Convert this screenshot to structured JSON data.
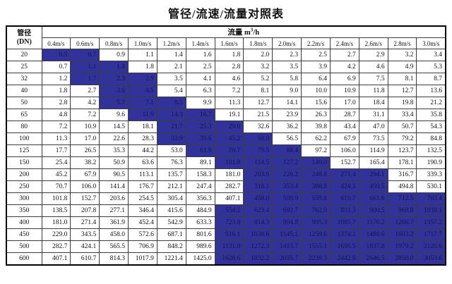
{
  "title": "管径/流速/流量对照表",
  "colors": {
    "highlight_bg": "#32329b",
    "highlight_text": "#14144a",
    "border": "#000000"
  },
  "table": {
    "corner": {
      "line1": "管径",
      "line2": "(DN)"
    },
    "flow_header": {
      "prefix": "流量 m",
      "sup": "3",
      "suffix": "/h"
    },
    "velocities": [
      "0.4m/s",
      "0.6m/s",
      "0.8m/s",
      "1.0m/s",
      "1.2m/s",
      "1.4m/s",
      "1.6m/s",
      "1.8m/s",
      "2.0m/s",
      "2.2m/s",
      "2.4m/s",
      "2.6m/s",
      "2.8m/s",
      "3.0m/s"
    ],
    "rows": [
      {
        "dn": "20",
        "values": [
          "0.5",
          "0.7",
          "0.9",
          "1.1",
          "1.4",
          "1.6",
          "1.8",
          "2.0",
          "2.3",
          "2.5",
          "2.7",
          "2.9",
          "3.2",
          "3.4"
        ],
        "highlight": [
          0,
          1
        ]
      },
      {
        "dn": "25",
        "values": [
          "0.7",
          "1.1",
          "1.4",
          "1.8",
          "2.1",
          "2.5",
          "2.8",
          "3.2",
          "3.5",
          "3.9",
          "4.2",
          "4.6",
          "4.9",
          "5.3"
        ],
        "highlight": [
          1,
          2
        ]
      },
      {
        "dn": "32",
        "values": [
          "1.2",
          "1.7",
          "2.3",
          "2.9",
          "3.5",
          "4.1",
          "4.6",
          "5.2",
          "5.8",
          "6.4",
          "6.9",
          "7.5",
          "8.1",
          "8.7"
        ],
        "highlight": [
          1,
          3
        ]
      },
      {
        "dn": "40",
        "values": [
          "1.8",
          "2.7",
          "3.6",
          "4.5",
          "5.4",
          "6.3",
          "7.2",
          "8.1",
          "9.0",
          "10.0",
          "10.9",
          "11.8",
          "12.7",
          "13.6"
        ],
        "highlight": [
          2,
          3
        ]
      },
      {
        "dn": "50",
        "values": [
          "2.8",
          "4.2",
          "5.7",
          "7.1",
          "8.5",
          "9.9",
          "11.3",
          "12.7",
          "14.1",
          "15.6",
          "17.0",
          "18.4",
          "19.8",
          "21.2"
        ],
        "highlight": [
          2,
          4
        ]
      },
      {
        "dn": "65",
        "values": [
          "4.8",
          "7.2",
          "9.6",
          "11.9",
          "14.3",
          "16.7",
          "19.1",
          "21.5",
          "23.9",
          "26.3",
          "28.7",
          "31.1",
          "33.4",
          "35.8"
        ],
        "highlight": [
          3,
          5
        ]
      },
      {
        "dn": "80",
        "values": [
          "7.2",
          "10.9",
          "14.5",
          "18.1",
          "21.7",
          "25.3",
          "29.0",
          "32.6",
          "36.2",
          "39.8",
          "43.4",
          "47.0",
          "50.7",
          "54.3"
        ],
        "highlight": [
          4,
          6
        ]
      },
      {
        "dn": "100",
        "values": [
          "11.3",
          "17.0",
          "22.6",
          "28.3",
          "33.9",
          "39.6",
          "45.2",
          "50.9",
          "56.5",
          "62.2",
          "67.9",
          "73.5",
          "79.2",
          "84.8"
        ],
        "highlight": [
          4,
          7
        ]
      },
      {
        "dn": "125",
        "values": [
          "17.7",
          "26.5",
          "35.3",
          "44.2",
          "53.0",
          "61.9",
          "70.7",
          "79.5",
          "88.4",
          "97.2",
          "106.0",
          "114.9",
          "123.7",
          "132.5"
        ],
        "highlight": [
          5,
          8
        ]
      },
      {
        "dn": "150",
        "values": [
          "25.4",
          "38.2",
          "50.9",
          "63.6",
          "76.3",
          "89.1",
          "101.8",
          "114.5",
          "127.2",
          "140.0",
          "152.7",
          "165.4",
          "178.1",
          "190.9"
        ],
        "highlight": [
          6,
          9
        ]
      },
      {
        "dn": "200",
        "values": [
          "45.2",
          "67.9",
          "90.5",
          "113.1",
          "135.7",
          "158.3",
          "181.0",
          "203.6",
          "226.2",
          "248.8",
          "271.4",
          "294.1",
          "316.7",
          "339.3"
        ],
        "highlight": [
          7,
          11
        ]
      },
      {
        "dn": "250",
        "values": [
          "70.7",
          "106.0",
          "141.4",
          "176.7",
          "212.1",
          "247.4",
          "282.7",
          "318.1",
          "353.4",
          "388.8",
          "424.1",
          "459.5",
          "494.8",
          "530.1"
        ],
        "highlight": [
          7,
          11
        ]
      },
      {
        "dn": "300",
        "values": [
          "101.8",
          "152.7",
          "203.6",
          "254.5",
          "305.4",
          "356.3",
          "407.1",
          "458.0",
          "508.9",
          "559.8",
          "610.7",
          "661.6",
          "712.5",
          "763.4"
        ],
        "highlight": [
          7,
          13
        ]
      },
      {
        "dn": "350",
        "values": [
          "138.5",
          "207.8",
          "277.1",
          "346.4",
          "415.6",
          "484.9",
          "554.2",
          "623.4",
          "692.7",
          "762.0",
          "831.3",
          "900.5",
          "969.8",
          "1039.1"
        ],
        "highlight": [
          6,
          13
        ]
      },
      {
        "dn": "400",
        "values": [
          "181.0",
          "271.4",
          "361.9",
          "452.4",
          "542.9",
          "633.3",
          "723.8",
          "814.3",
          "904.8",
          "995.3",
          "1085.7",
          "1176.2",
          "1266.7",
          "1357.2"
        ],
        "highlight": [
          6,
          13
        ]
      },
      {
        "dn": "450",
        "values": [
          "229.0",
          "343.5",
          "458.0",
          "572.6",
          "687.1",
          "801.6",
          "916.1",
          "1030.6",
          "1145.1",
          "1259.6",
          "1374.1",
          "1488.6",
          "1603.2",
          "1717.7"
        ],
        "highlight": [
          6,
          13
        ]
      },
      {
        "dn": "500",
        "values": [
          "282.7",
          "424.1",
          "565.5",
          "706.9",
          "848.2",
          "989.6",
          "1131.0",
          "1272.3",
          "1413.7",
          "1555.1",
          "1696.5",
          "1837.8",
          "1979.2",
          "2120.6"
        ],
        "highlight": [
          6,
          13
        ]
      },
      {
        "dn": "600",
        "values": [
          "407.1",
          "610.7",
          "814.3",
          "1017.9",
          "1221.4",
          "1425.0",
          "1628.6",
          "1832.2",
          "2035.7",
          "2239.3",
          "2442.9",
          "2646.5",
          "2850.0",
          "3053.6"
        ],
        "highlight": [
          6,
          13
        ]
      }
    ]
  }
}
